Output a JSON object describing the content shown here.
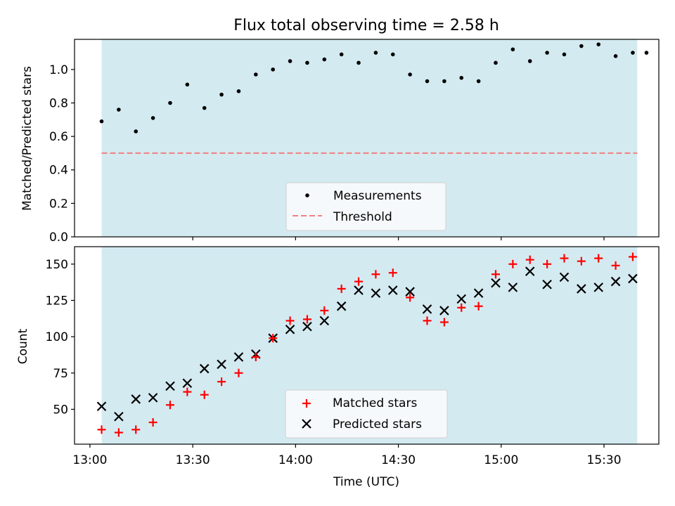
{
  "chart_data": [
    {
      "type": "scatter",
      "title": "Flux total observing time = 2.58 h",
      "xlabel": "",
      "ylabel": "Matched/Predicted stars",
      "xlim": [
        -4.5,
        166
      ],
      "ylim": [
        0.0,
        1.18
      ],
      "xticks_min": [
        30,
        60,
        90,
        120,
        150
      ],
      "yticks": [
        0.0,
        0.2,
        0.4,
        0.6,
        0.8,
        1.0
      ],
      "ytick_labels": [
        "0.0",
        "0.2",
        "0.4",
        "0.6",
        "0.8",
        "1.0"
      ],
      "observing_window": [
        3.4,
        159.7
      ],
      "observing_window_color": "#d4eaf1",
      "threshold": 0.5,
      "threshold_color": "#f08080",
      "legend_placement": "lower center",
      "series": [
        {
          "name": "Measurements",
          "marker": "dot",
          "color": "#000000",
          "x": [
            3.4,
            8.4,
            13.4,
            18.4,
            23.4,
            28.4,
            33.4,
            38.4,
            43.4,
            48.4,
            53.4,
            58.4,
            63.4,
            68.4,
            73.4,
            78.4,
            83.4,
            88.4,
            93.4,
            98.4,
            103.4,
            108.4,
            113.4,
            118.4,
            123.4,
            128.4,
            133.4,
            138.4,
            143.4,
            148.4,
            153.4,
            158.4,
            162.4
          ],
          "y": [
            0.69,
            0.76,
            0.63,
            0.71,
            0.8,
            0.91,
            0.77,
            0.85,
            0.87,
            0.97,
            1.0,
            1.05,
            1.04,
            1.06,
            1.09,
            1.04,
            1.1,
            1.09,
            0.97,
            0.93,
            0.93,
            0.95,
            0.93,
            1.04,
            1.12,
            1.05,
            1.1,
            1.09,
            1.14,
            1.15,
            1.08,
            1.1,
            1.1
          ]
        },
        {
          "name": "Threshold",
          "marker": "dashed-line",
          "color": "#f08080",
          "x": [
            3.4,
            159.7
          ],
          "y": [
            0.5,
            0.5
          ]
        }
      ]
    },
    {
      "type": "scatter",
      "title": "",
      "xlabel": "Time (UTC)",
      "ylabel": "Count",
      "xlim": [
        -4.5,
        166
      ],
      "ylim": [
        26,
        162
      ],
      "xticks_min": [
        0,
        30,
        60,
        90,
        120,
        150
      ],
      "xtick_labels": [
        "13:00",
        "13:30",
        "14:00",
        "14:30",
        "15:00",
        "15:30"
      ],
      "yticks": [
        50,
        75,
        100,
        125,
        150
      ],
      "ytick_labels": [
        "50",
        "75",
        "100",
        "125",
        "150"
      ],
      "observing_window": [
        3.4,
        159.7
      ],
      "observing_window_color": "#d4eaf1",
      "legend_placement": "lower center",
      "series": [
        {
          "name": "Matched stars",
          "marker": "plus",
          "color": "#ff0000",
          "x": [
            3.4,
            8.4,
            13.4,
            18.4,
            23.4,
            28.4,
            33.4,
            38.4,
            43.4,
            48.4,
            53.4,
            58.4,
            63.4,
            68.4,
            73.4,
            78.4,
            83.4,
            88.4,
            93.4,
            98.4,
            103.4,
            108.4,
            113.4,
            118.4,
            123.4,
            128.4,
            133.4,
            138.4,
            143.4,
            148.4,
            153.4,
            158.4
          ],
          "y": [
            36,
            34,
            36,
            41,
            53,
            62,
            60,
            69,
            75,
            86,
            99,
            111,
            112,
            118,
            133,
            138,
            143,
            144,
            127,
            111,
            110,
            120,
            121,
            143,
            150,
            153,
            150,
            154,
            152,
            154,
            149,
            155
          ]
        },
        {
          "name": "Predicted stars",
          "marker": "x",
          "color": "#000000",
          "x": [
            3.4,
            8.4,
            13.4,
            18.4,
            23.4,
            28.4,
            33.4,
            38.4,
            43.4,
            48.4,
            53.4,
            58.4,
            63.4,
            68.4,
            73.4,
            78.4,
            83.4,
            88.4,
            93.4,
            98.4,
            103.4,
            108.4,
            113.4,
            118.4,
            123.4,
            128.4,
            133.4,
            138.4,
            143.4,
            148.4,
            153.4,
            158.4
          ],
          "y": [
            52,
            45,
            57,
            58,
            66,
            68,
            78,
            81,
            86,
            88,
            99,
            105,
            107,
            111,
            121,
            132,
            130,
            132,
            131,
            119,
            118,
            126,
            130,
            137,
            134,
            145,
            136,
            141,
            133,
            134,
            138,
            140
          ]
        }
      ]
    }
  ]
}
